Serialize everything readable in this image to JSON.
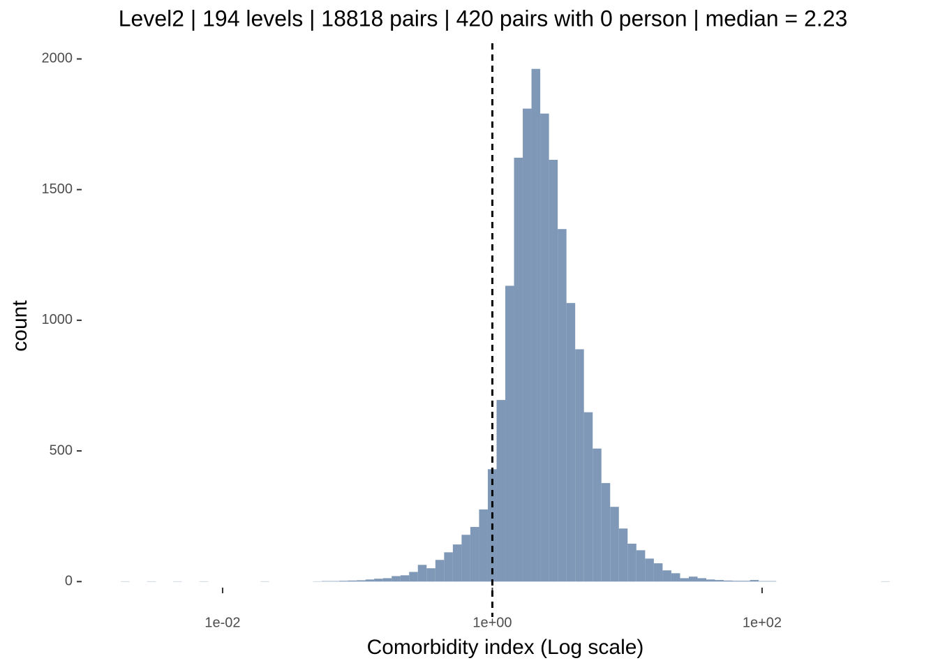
{
  "chart_data": {
    "type": "histogram",
    "title": "Level2 | 194 levels | 18818 pairs | 420 pairs with 0 person | median = 2.23",
    "x_label": "Comorbidity index (Log scale)",
    "y_label": "count",
    "xscale": "log",
    "color": "#7f98b7",
    "grid": false,
    "vline": 1,
    "xlim": [
      0.000912,
      1706
    ],
    "ylim": [
      -98,
      2060
    ],
    "xticks": [
      {
        "value": 0.01,
        "label": "1e-02"
      },
      {
        "value": 1,
        "label": "1e+00"
      },
      {
        "value": 100,
        "label": "1e+02"
      }
    ],
    "yticks": [
      0,
      500,
      1000,
      1500,
      2000
    ],
    "bins": [
      0.001757,
      0.00204,
      0.002368,
      0.002749,
      0.003192,
      0.003706,
      0.004301,
      0.004994,
      0.005797,
      0.00673,
      0.007813,
      0.009071,
      0.01053,
      0.01222,
      0.01419,
      0.01647,
      0.01912,
      0.0222,
      0.02577,
      0.02992,
      0.03473,
      0.04032,
      0.04681,
      0.05434,
      0.0631,
      0.07325,
      0.08504,
      0.09872,
      0.1146,
      0.133,
      0.1545,
      0.1793,
      0.2082,
      0.2416,
      0.2805,
      0.3257,
      0.3781,
      0.4389,
      0.5096,
      0.5916,
      0.6867,
      0.7972,
      0.9256,
      1.075,
      1.247,
      1.448,
      1.681,
      1.951,
      2.265,
      2.63,
      3.053,
      3.544,
      4.115,
      4.777,
      5.546,
      6.438,
      7.474,
      8.677,
      10.07,
      11.69,
      13.58,
      15.76,
      18.3,
      21.24,
      24.66,
      28.63,
      33.24,
      38.59,
      44.8,
      52.0,
      60.37,
      70.08,
      81.36,
      94.45,
      109.6,
      127.3,
      147.8,
      171.6,
      199.2,
      231.2,
      268.5,
      311.7,
      361.8,
      420.1,
      487.5,
      566.0,
      657.1,
      762.8,
      885.6
    ],
    "counts": [
      1,
      0,
      0,
      1,
      0,
      0,
      1,
      0,
      0,
      1,
      0,
      0,
      0,
      0,
      0,
      0,
      1,
      0,
      0,
      0,
      0,
      0,
      1,
      2,
      2,
      3,
      4,
      5,
      8,
      11,
      13,
      21,
      24,
      37,
      64,
      51,
      83,
      112,
      142,
      179,
      209,
      276,
      430,
      695,
      1132,
      1622,
      1810,
      1962,
      1791,
      1614,
      1349,
      1066,
      889,
      648,
      509,
      377,
      286,
      203,
      145,
      120,
      88,
      70,
      43,
      32,
      13,
      19,
      13,
      8,
      6,
      4,
      3,
      3,
      6,
      2,
      2,
      0,
      0,
      0,
      0,
      0,
      0,
      0,
      0,
      0,
      0,
      0,
      0,
      1
    ]
  }
}
